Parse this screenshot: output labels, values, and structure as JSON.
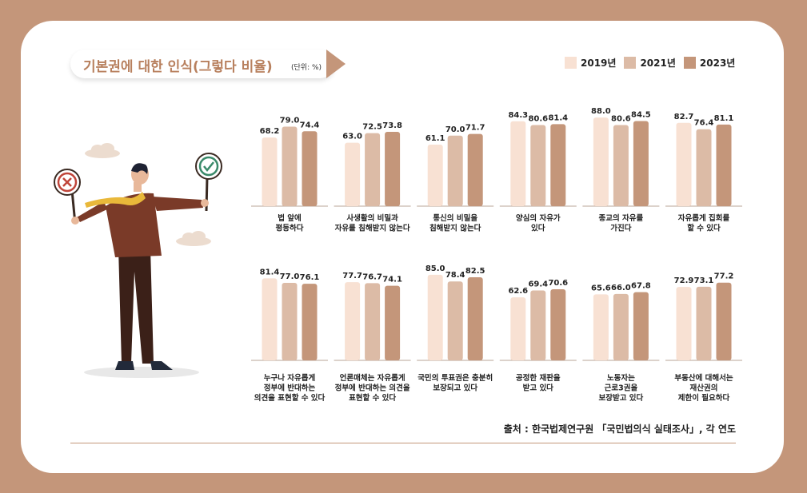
{
  "header": {
    "title": "기본권에 대한 인식(그렇다 비율)",
    "unit": "(단위: %)"
  },
  "legend": [
    {
      "label": "2019년",
      "color": "#f8e1d3"
    },
    {
      "label": "2021년",
      "color": "#dcbba6"
    },
    {
      "label": "2023년",
      "color": "#c4967a"
    }
  ],
  "source": "출처 : 한국법제연구원 「국민법의식 실태조사」, 각 연도",
  "chart_data": {
    "type": "bar",
    "series_names": [
      "2019년",
      "2021년",
      "2023년"
    ],
    "ylim": [
      0,
      100
    ],
    "categories": [
      {
        "label": [
          "법 앞에",
          "평등하다"
        ],
        "values": [
          68.2,
          79.0,
          74.4
        ]
      },
      {
        "label": [
          "사생활의 비밀과",
          "자유를 침해받지 않는다"
        ],
        "values": [
          63.0,
          72.5,
          73.8
        ]
      },
      {
        "label": [
          "통신의 비밀을",
          "침해받지 않는다"
        ],
        "values": [
          61.1,
          70.0,
          71.7
        ]
      },
      {
        "label": [
          "양심의 자유가",
          "있다"
        ],
        "values": [
          84.3,
          80.6,
          81.4
        ]
      },
      {
        "label": [
          "종교의 자유를",
          "가진다"
        ],
        "values": [
          88.0,
          80.6,
          84.5
        ]
      },
      {
        "label": [
          "자유롭게 집회를",
          "할 수 있다"
        ],
        "values": [
          82.7,
          76.4,
          81.1
        ]
      },
      {
        "label": [
          "누구나 자유롭게",
          "정부에 반대하는",
          "의견을 표현할 수 있다"
        ],
        "values": [
          81.4,
          77.0,
          76.1
        ]
      },
      {
        "label": [
          "언론매체는 자유롭게",
          "정부에 반대하는 의견을",
          "표현할 수 있다"
        ],
        "values": [
          77.7,
          76.7,
          74.1
        ]
      },
      {
        "label": [
          "국민의 투표권은 충분히",
          "보장되고 있다"
        ],
        "values": [
          85.0,
          78.4,
          82.5
        ]
      },
      {
        "label": [
          "공정한 재판을",
          "받고 있다"
        ],
        "values": [
          62.6,
          69.4,
          70.6
        ]
      },
      {
        "label": [
          "노동자는",
          "근로3권을",
          "보장받고 있다"
        ],
        "values": [
          65.6,
          66.0,
          67.8
        ]
      },
      {
        "label": [
          "부동산에 대해서는",
          "재산권의",
          "제한이 필요하다"
        ],
        "values": [
          72.9,
          73.1,
          77.2
        ]
      }
    ]
  }
}
